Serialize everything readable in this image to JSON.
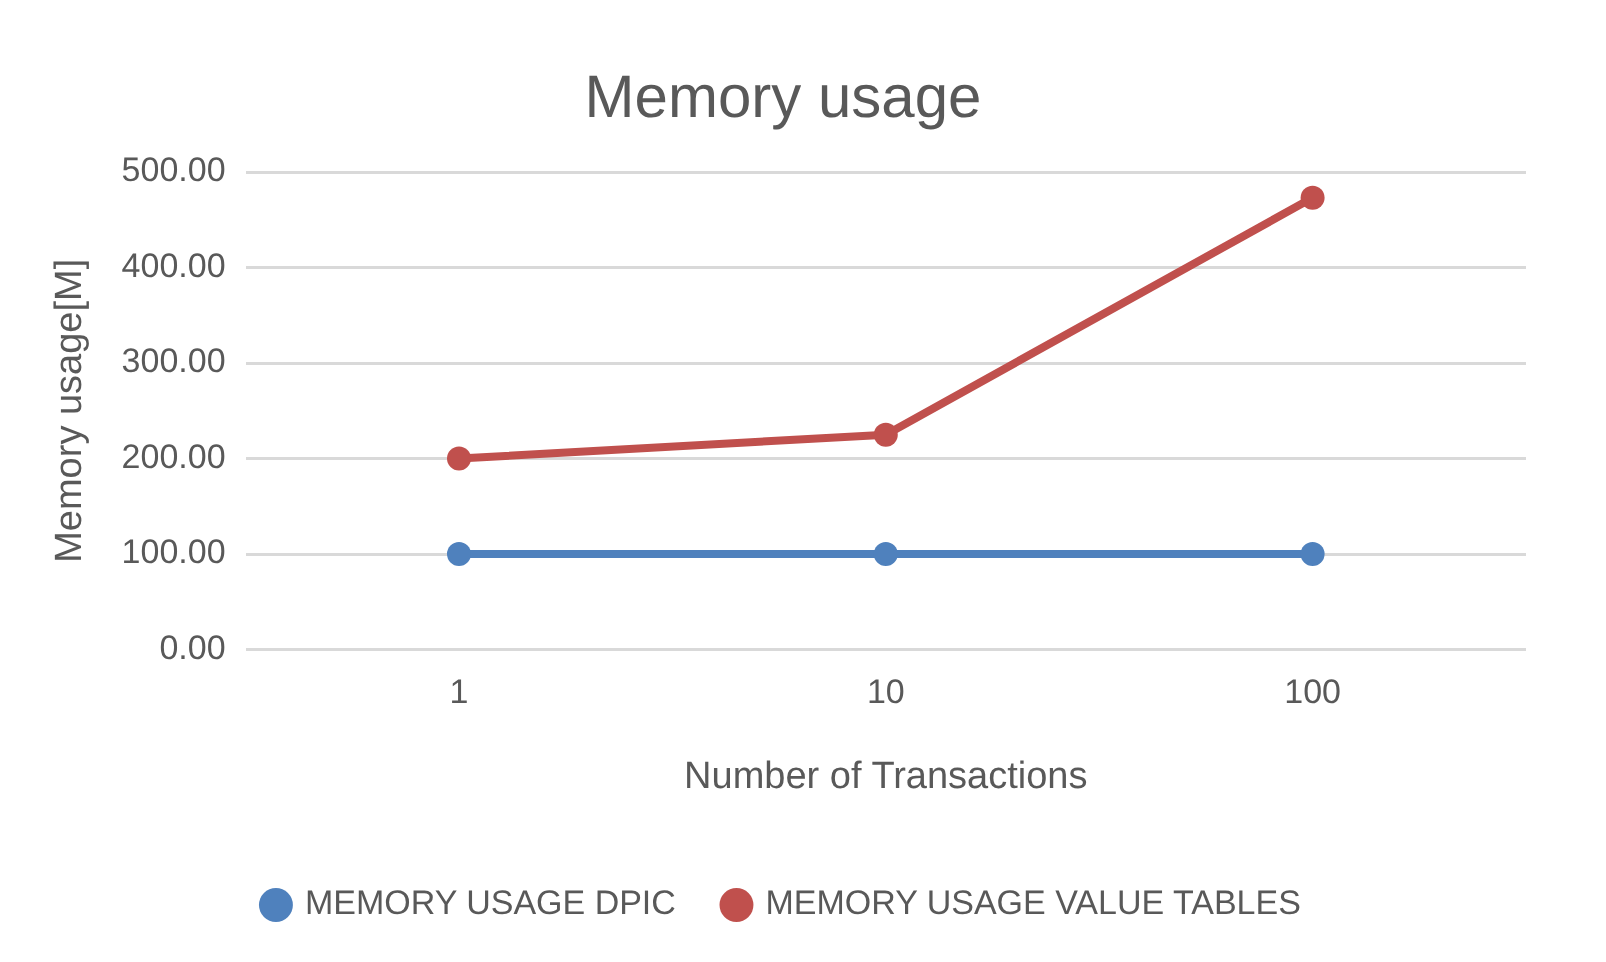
{
  "chart_data": {
    "type": "line",
    "title": "Memory usage",
    "xlabel": "Number of Transactions",
    "ylabel": "Memory usage[M]",
    "categories": [
      "1",
      "10",
      "100"
    ],
    "series": [
      {
        "name": "MEMORY USAGE DPIC",
        "color": "#4f81bd",
        "values": [
          100,
          100,
          100
        ]
      },
      {
        "name": "MEMORY USAGE VALUE TABLES",
        "color": "#c0504d",
        "values": [
          200,
          225,
          473
        ]
      }
    ],
    "ylim": [
      0,
      500
    ],
    "yticks": [
      {
        "value": 0,
        "label": "0.00"
      },
      {
        "value": 100,
        "label": "100.00"
      },
      {
        "value": 200,
        "label": "200.00"
      },
      {
        "value": 300,
        "label": "300.00"
      },
      {
        "value": 400,
        "label": "400.00"
      },
      {
        "value": 500,
        "label": "500.00"
      }
    ],
    "grid": "y",
    "legend": "bottom",
    "marker": "circle",
    "line_style": "solid"
  }
}
